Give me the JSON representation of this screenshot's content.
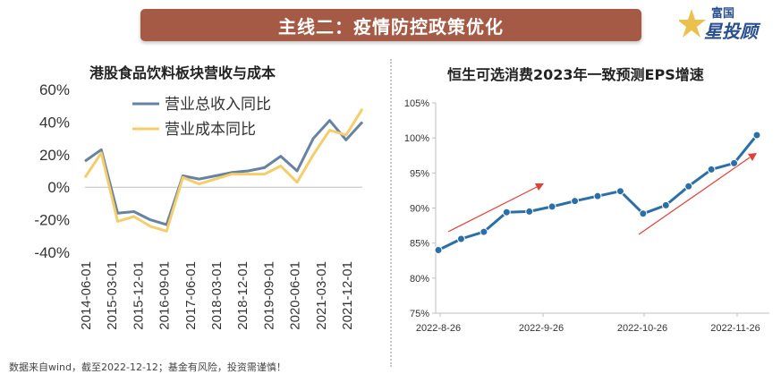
{
  "header": {
    "title": "主线二：疫情防控政策优化"
  },
  "logo": {
    "line1": "富国",
    "line2": "投顾",
    "star": "星"
  },
  "footnote": "数据来自wind，截至2022-12-12；基金有风险，投资需谨慎！",
  "colors": {
    "banner": "#a45a45",
    "series_revenue": "#6783a3",
    "series_cost": "#f5cd6b",
    "eps_line": "#2a6fa8",
    "arrow": "#e0403a"
  },
  "chart_data": [
    {
      "type": "line",
      "title": "港股食品饮料板块营收与成本",
      "ylim": [
        -0.4,
        0.6
      ],
      "yticks": [
        "60%",
        "40%",
        "20%",
        "0%",
        "-20%",
        "-40%"
      ],
      "ytick_values": [
        0.6,
        0.4,
        0.2,
        0.0,
        -0.2,
        -0.4
      ],
      "x_tick_labels": [
        "2014-06-01",
        "2015-03-01",
        "2015-12-01",
        "2016-09-01",
        "2017-06-01",
        "2018-03-01",
        "2018-12-01",
        "2019-09-01",
        "2020-06-01",
        "2021-03-01",
        "2021-12-01"
      ],
      "legend": [
        "营业总收入同比",
        "营业成本同比"
      ],
      "series": [
        {
          "name": "营业总收入同比",
          "values": [
            0.16,
            0.23,
            -0.16,
            -0.15,
            -0.2,
            -0.23,
            0.07,
            0.05,
            0.07,
            0.09,
            0.1,
            0.12,
            0.19,
            0.1,
            0.3,
            0.41,
            0.29,
            0.4
          ]
        },
        {
          "name": "营业成本同比",
          "values": [
            0.06,
            0.21,
            -0.21,
            -0.18,
            -0.24,
            -0.27,
            0.06,
            0.02,
            0.05,
            0.08,
            0.08,
            0.08,
            0.13,
            0.03,
            0.2,
            0.35,
            0.32,
            0.48
          ]
        }
      ]
    },
    {
      "type": "line",
      "title": "恒生可选消费2023年一致预测EPS增速",
      "ylim": [
        0.75,
        1.05
      ],
      "yticks": [
        "105%",
        "100%",
        "95%",
        "90%",
        "85%",
        "80%",
        "75%"
      ],
      "ytick_values": [
        1.05,
        1.0,
        0.95,
        0.9,
        0.85,
        0.8,
        0.75
      ],
      "x_tick_labels": [
        "2022-8-26",
        "2022-9-26",
        "2022-10-26",
        "2022-11-26"
      ],
      "series": [
        {
          "name": "EPS增速",
          "values": [
            0.84,
            0.856,
            0.866,
            0.894,
            0.895,
            0.902,
            0.91,
            0.917,
            0.924,
            0.892,
            0.904,
            0.931,
            0.955,
            0.964,
            1.004
          ]
        }
      ]
    }
  ]
}
